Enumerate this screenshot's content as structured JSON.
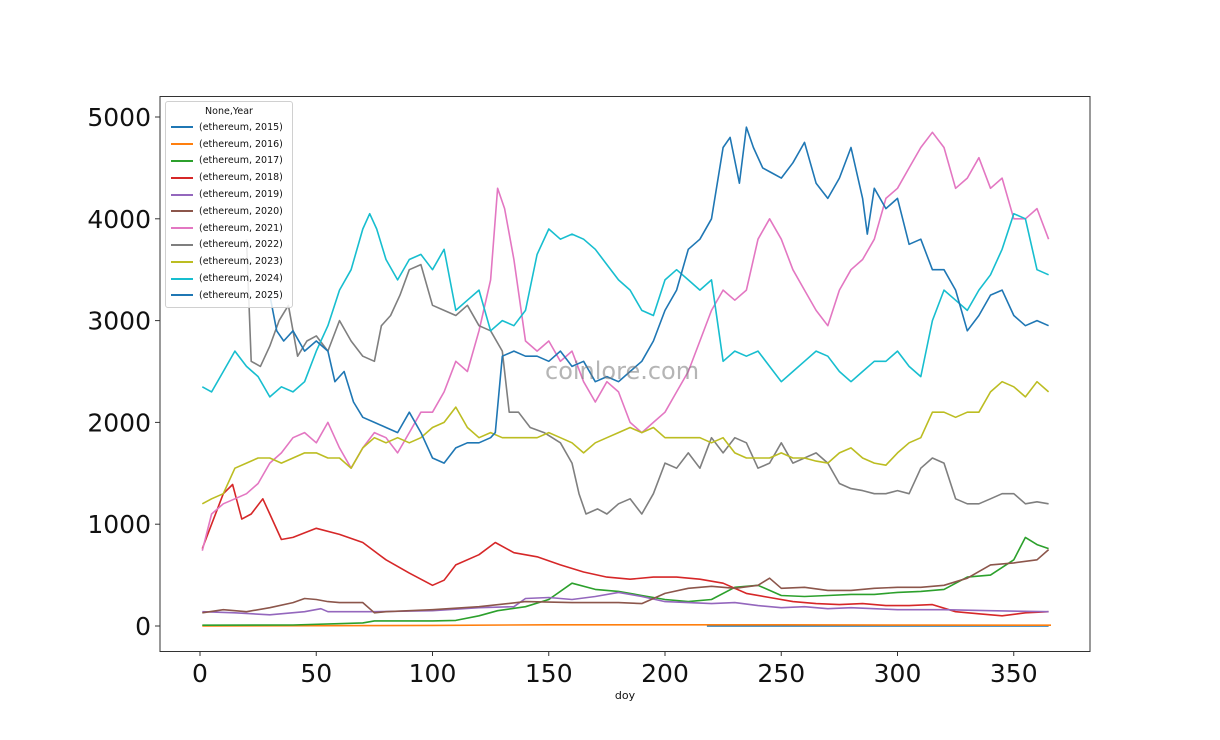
{
  "chart_data": {
    "type": "line",
    "title": "",
    "xlabel": "doy",
    "ylabel": "",
    "xlim": [
      -17,
      383
    ],
    "ylim": [
      -250,
      5200
    ],
    "xticks": [
      0,
      50,
      100,
      150,
      200,
      250,
      300,
      350
    ],
    "yticks": [
      0,
      1000,
      2000,
      3000,
      4000,
      5000
    ],
    "grid": false,
    "legend": {
      "title": "None,Year",
      "position": "upper left",
      "entries": [
        "(ethereum, 2015)",
        "(ethereum, 2016)",
        "(ethereum, 2017)",
        "(ethereum, 2018)",
        "(ethereum, 2019)",
        "(ethereum, 2020)",
        "(ethereum, 2021)",
        "(ethereum, 2022)",
        "(ethereum, 2023)",
        "(ethereum, 2024)",
        "(ethereum, 2025)"
      ]
    },
    "watermark": "coinlore.com",
    "series": [
      {
        "name": "(ethereum, 2015)",
        "color": "#1f77b4",
        "x": [
          218,
          240,
          260,
          280,
          300,
          320,
          340,
          365
        ],
        "y": [
          1,
          1,
          1,
          1,
          1,
          1,
          1,
          1
        ]
      },
      {
        "name": "(ethereum, 2016)",
        "color": "#ff7f0e",
        "x": [
          1,
          50,
          100,
          150,
          200,
          250,
          300,
          366
        ],
        "y": [
          1,
          3,
          6,
          12,
          12,
          12,
          9,
          8
        ]
      },
      {
        "name": "(ethereum, 2017)",
        "color": "#2ca02c",
        "x": [
          1,
          40,
          70,
          75,
          100,
          110,
          120,
          128,
          140,
          150,
          160,
          170,
          180,
          190,
          200,
          210,
          220,
          230,
          240,
          250,
          260,
          270,
          280,
          290,
          300,
          310,
          320,
          330,
          340,
          350,
          355,
          360,
          365
        ],
        "y": [
          8,
          10,
          30,
          50,
          50,
          55,
          100,
          150,
          190,
          260,
          420,
          360,
          340,
          300,
          260,
          240,
          260,
          380,
          400,
          300,
          290,
          300,
          310,
          310,
          330,
          340,
          360,
          480,
          500,
          650,
          870,
          800,
          760
        ]
      },
      {
        "name": "(ethereum, 2018)",
        "color": "#d62728",
        "x": [
          1,
          5,
          10,
          14,
          18,
          22,
          27,
          30,
          35,
          40,
          50,
          60,
          70,
          80,
          90,
          95,
          100,
          105,
          110,
          120,
          127,
          135,
          145,
          155,
          165,
          175,
          185,
          195,
          205,
          215,
          225,
          235,
          245,
          255,
          265,
          275,
          285,
          295,
          305,
          315,
          325,
          335,
          345,
          355,
          365
        ],
        "y": [
          760,
          1000,
          1300,
          1390,
          1050,
          1100,
          1250,
          1100,
          850,
          870,
          960,
          900,
          820,
          650,
          520,
          460,
          400,
          450,
          600,
          700,
          820,
          720,
          680,
          600,
          530,
          480,
          460,
          480,
          480,
          460,
          420,
          320,
          280,
          240,
          220,
          210,
          220,
          200,
          200,
          210,
          140,
          120,
          100,
          130,
          140
        ]
      },
      {
        "name": "(ethereum, 2019)",
        "color": "#9467bd",
        "x": [
          1,
          15,
          30,
          45,
          52,
          55,
          60,
          75,
          100,
          120,
          135,
          140,
          150,
          160,
          170,
          180,
          190,
          200,
          210,
          220,
          230,
          240,
          250,
          260,
          270,
          280,
          290,
          300,
          320,
          340,
          365
        ],
        "y": [
          140,
          130,
          110,
          140,
          170,
          140,
          140,
          140,
          150,
          180,
          190,
          270,
          280,
          260,
          290,
          330,
          290,
          240,
          230,
          220,
          230,
          200,
          180,
          190,
          170,
          180,
          170,
          160,
          160,
          150,
          140
        ]
      },
      {
        "name": "(ethereum, 2020)",
        "color": "#8c564b",
        "x": [
          1,
          10,
          20,
          30,
          40,
          45,
          50,
          55,
          60,
          70,
          75,
          80,
          100,
          120,
          140,
          160,
          180,
          190,
          200,
          210,
          220,
          230,
          240,
          245,
          250,
          260,
          270,
          280,
          290,
          300,
          310,
          320,
          330,
          340,
          350,
          360,
          365
        ],
        "y": [
          130,
          160,
          140,
          180,
          230,
          270,
          260,
          240,
          230,
          230,
          130,
          140,
          160,
          190,
          240,
          230,
          230,
          220,
          320,
          370,
          390,
          370,
          400,
          470,
          370,
          380,
          350,
          350,
          370,
          380,
          380,
          400,
          470,
          600,
          620,
          650,
          750
        ]
      },
      {
        "name": "(ethereum, 2021)",
        "color": "#e377c2",
        "x": [
          1,
          5,
          10,
          15,
          20,
          25,
          30,
          35,
          40,
          45,
          50,
          55,
          60,
          65,
          70,
          75,
          80,
          85,
          90,
          95,
          100,
          105,
          110,
          115,
          120,
          125,
          128,
          131,
          135,
          140,
          145,
          150,
          155,
          160,
          165,
          170,
          175,
          180,
          185,
          190,
          195,
          200,
          205,
          210,
          215,
          220,
          225,
          230,
          235,
          240,
          245,
          250,
          255,
          260,
          265,
          270,
          275,
          280,
          285,
          290,
          295,
          300,
          305,
          310,
          315,
          320,
          325,
          330,
          335,
          340,
          345,
          350,
          355,
          360,
          365
        ],
        "y": [
          740,
          1100,
          1200,
          1250,
          1300,
          1400,
          1600,
          1700,
          1850,
          1900,
          1800,
          2000,
          1750,
          1550,
          1750,
          1900,
          1850,
          1700,
          1900,
          2100,
          2100,
          2300,
          2600,
          2500,
          2900,
          3400,
          4300,
          4100,
          3600,
          2800,
          2700,
          2800,
          2600,
          2700,
          2400,
          2200,
          2400,
          2300,
          2000,
          1900,
          2000,
          2100,
          2300,
          2500,
          2800,
          3100,
          3300,
          3200,
          3300,
          3800,
          4000,
          3800,
          3500,
          3300,
          3100,
          2950,
          3300,
          3500,
          3600,
          3800,
          4200,
          4300,
          4500,
          4700,
          4850,
          4700,
          4300,
          4400,
          4600,
          4300,
          4400,
          4000,
          4000,
          4100,
          3800
        ]
      },
      {
        "name": "(ethereum, 2022)",
        "color": "#7f7f7f",
        "x": [
          20,
          22,
          26,
          30,
          34,
          38,
          42,
          46,
          50,
          55,
          60,
          65,
          70,
          75,
          78,
          82,
          86,
          90,
          95,
          100,
          105,
          110,
          115,
          120,
          125,
          130,
          133,
          137,
          142,
          148,
          155,
          160,
          163,
          166,
          171,
          175,
          180,
          185,
          190,
          195,
          200,
          205,
          210,
          215,
          220,
          225,
          230,
          235,
          240,
          245,
          250,
          255,
          260,
          265,
          270,
          275,
          280,
          285,
          290,
          295,
          300,
          305,
          310,
          315,
          320,
          325,
          330,
          335,
          340,
          345,
          350,
          355,
          360,
          365
        ],
        "y": [
          3800,
          2600,
          2550,
          2750,
          3000,
          3150,
          2650,
          2800,
          2850,
          2700,
          3000,
          2800,
          2650,
          2600,
          2950,
          3050,
          3250,
          3500,
          3550,
          3150,
          3100,
          3050,
          3150,
          2950,
          2900,
          2700,
          2100,
          2100,
          1950,
          1900,
          1800,
          1600,
          1300,
          1100,
          1150,
          1100,
          1200,
          1250,
          1100,
          1300,
          1600,
          1550,
          1700,
          1550,
          1850,
          1700,
          1850,
          1800,
          1550,
          1600,
          1800,
          1600,
          1650,
          1700,
          1600,
          1400,
          1350,
          1330,
          1300,
          1300,
          1330,
          1300,
          1550,
          1650,
          1600,
          1250,
          1200,
          1200,
          1250,
          1300,
          1300,
          1200,
          1220,
          1200
        ]
      },
      {
        "name": "(ethereum, 2023)",
        "color": "#bcbd22",
        "x": [
          1,
          5,
          10,
          15,
          20,
          25,
          30,
          35,
          40,
          45,
          50,
          55,
          60,
          65,
          70,
          75,
          80,
          85,
          90,
          95,
          100,
          105,
          110,
          115,
          120,
          125,
          130,
          135,
          140,
          145,
          150,
          155,
          160,
          165,
          170,
          175,
          180,
          185,
          190,
          195,
          200,
          205,
          210,
          215,
          220,
          225,
          230,
          235,
          240,
          245,
          250,
          255,
          260,
          265,
          270,
          275,
          280,
          285,
          290,
          295,
          300,
          305,
          310,
          315,
          320,
          325,
          330,
          335,
          340,
          345,
          350,
          355,
          360,
          365
        ],
        "y": [
          1200,
          1250,
          1300,
          1550,
          1600,
          1650,
          1650,
          1600,
          1650,
          1700,
          1700,
          1650,
          1650,
          1550,
          1750,
          1850,
          1800,
          1850,
          1800,
          1850,
          1950,
          2000,
          2150,
          1950,
          1850,
          1900,
          1850,
          1850,
          1850,
          1850,
          1900,
          1850,
          1800,
          1700,
          1800,
          1850,
          1900,
          1950,
          1900,
          1950,
          1850,
          1850,
          1850,
          1850,
          1800,
          1850,
          1700,
          1650,
          1650,
          1650,
          1700,
          1650,
          1650,
          1620,
          1600,
          1700,
          1750,
          1650,
          1600,
          1580,
          1700,
          1800,
          1850,
          2100,
          2100,
          2050,
          2100,
          2100,
          2300,
          2400,
          2350,
          2250,
          2400,
          2300
        ]
      },
      {
        "name": "(ethereum, 2024)",
        "color": "#17becf",
        "x": [
          1,
          5,
          10,
          15,
          20,
          25,
          30,
          35,
          40,
          45,
          50,
          55,
          60,
          65,
          70,
          73,
          76,
          80,
          85,
          90,
          95,
          100,
          105,
          110,
          115,
          120,
          125,
          130,
          135,
          140,
          145,
          150,
          155,
          160,
          165,
          170,
          175,
          180,
          185,
          190,
          195,
          200,
          205,
          210,
          215,
          220,
          225,
          230,
          235,
          240,
          245,
          250,
          255,
          260,
          265,
          270,
          275,
          280,
          285,
          290,
          295,
          300,
          305,
          310,
          315,
          320,
          325,
          330,
          335,
          340,
          345,
          350,
          355,
          360,
          365
        ],
        "y": [
          2350,
          2300,
          2500,
          2700,
          2550,
          2450,
          2250,
          2350,
          2300,
          2400,
          2700,
          2950,
          3300,
          3500,
          3900,
          4050,
          3900,
          3600,
          3400,
          3600,
          3650,
          3500,
          3700,
          3100,
          3200,
          3300,
          2900,
          3000,
          2950,
          3100,
          3650,
          3900,
          3800,
          3850,
          3800,
          3700,
          3550,
          3400,
          3300,
          3100,
          3050,
          3400,
          3500,
          3400,
          3300,
          3400,
          2600,
          2700,
          2650,
          2700,
          2550,
          2400,
          2500,
          2600,
          2700,
          2650,
          2500,
          2400,
          2500,
          2600,
          2600,
          2700,
          2550,
          2450,
          3000,
          3300,
          3200,
          3100,
          3300,
          3450,
          3700,
          4050,
          4000,
          3500,
          3450
        ]
      },
      {
        "name": "(ethereum, 2025)",
        "color": "#1f77b4",
        "x": [
          30,
          33,
          36,
          40,
          45,
          50,
          55,
          58,
          62,
          66,
          70,
          75,
          80,
          85,
          90,
          95,
          100,
          105,
          110,
          115,
          120,
          125,
          127,
          130,
          135,
          140,
          145,
          150,
          155,
          160,
          165,
          170,
          175,
          180,
          185,
          190,
          195,
          200,
          205,
          210,
          215,
          220,
          225,
          228,
          232,
          235,
          238,
          242,
          246,
          250,
          255,
          260,
          265,
          270,
          275,
          280,
          285,
          287,
          290,
          295,
          300,
          305,
          310,
          315,
          320,
          325,
          330,
          335,
          340,
          345,
          350,
          355,
          360,
          365
        ],
        "y": [
          3250,
          2900,
          2800,
          2900,
          2700,
          2800,
          2700,
          2400,
          2500,
          2200,
          2050,
          2000,
          1950,
          1900,
          2100,
          1900,
          1650,
          1600,
          1750,
          1800,
          1800,
          1850,
          1900,
          2650,
          2700,
          2650,
          2650,
          2600,
          2700,
          2550,
          2600,
          2400,
          2450,
          2400,
          2500,
          2600,
          2800,
          3100,
          3300,
          3700,
          3800,
          4000,
          4700,
          4800,
          4350,
          4900,
          4700,
          4500,
          4450,
          4400,
          4550,
          4750,
          4350,
          4200,
          4400,
          4700,
          4200,
          3850,
          4300,
          4100,
          4200,
          3750,
          3800,
          3500,
          3500,
          3300,
          2900,
          3050,
          3250,
          3300,
          3050,
          2950,
          3000,
          2950
        ]
      }
    ]
  }
}
